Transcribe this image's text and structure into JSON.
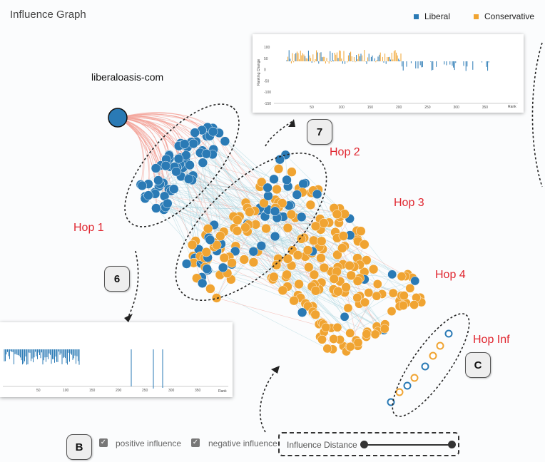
{
  "app": {
    "title": "Influence Graph"
  },
  "legend": {
    "liberal_label": "Liberal",
    "conservative_label": "Conservative",
    "liberal_color": "#2a7ab5",
    "conservative_color": "#f0a432"
  },
  "graph": {
    "source_node_label": "liberaloasis-com",
    "hops": [
      "Hop 1",
      "Hop 2",
      "Hop 3",
      "Hop 4",
      "Hop Inf"
    ],
    "positive_edge_color": "#f4a49a",
    "negative_edge_color": "#a8d3dc"
  },
  "badges": {
    "b6": "6",
    "b7": "7",
    "bB": "B",
    "bC": "C"
  },
  "panel_top": {
    "ylabel": "Ranking Change",
    "yticks": [
      "100",
      "50",
      "0",
      "-50",
      "-100",
      "-150"
    ],
    "xticks": [
      "50",
      "100",
      "150",
      "200",
      "250",
      "300",
      "350"
    ],
    "xlabel": "Rank"
  },
  "panel_left": {
    "xticks": [
      "50",
      "100",
      "150",
      "200",
      "250",
      "300",
      "350"
    ],
    "xlabel": "Rank"
  },
  "controls": {
    "positive_label": "positive influence",
    "negative_label": "negative influence",
    "distance_label": "Influence Distance"
  }
}
